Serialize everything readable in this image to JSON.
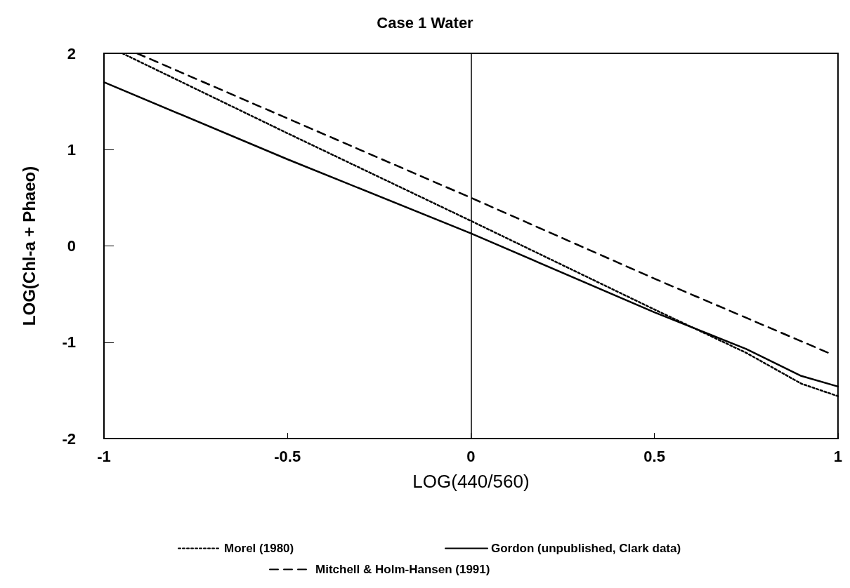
{
  "chart_data": {
    "type": "line",
    "title": "Case 1 Water",
    "xlabel": "LOG(440/560)",
    "ylabel": "LOG(Chl-a + Phaeo)",
    "xlim": [
      -1,
      1
    ],
    "xticks": [
      -1,
      -0.5,
      0,
      0.5,
      1
    ],
    "ylim": [
      -2,
      2
    ],
    "yticks": [
      -2,
      -1,
      0,
      1,
      2
    ],
    "grid": false,
    "legend": "bottom",
    "marker": "none",
    "ref_lines": [
      {
        "axis": "x",
        "value": 0,
        "color": "#000000",
        "line_style": "solid"
      }
    ],
    "series": [
      {
        "name": "Morel (1980)",
        "color": "#000000",
        "line_style": "dotted",
        "x": [
          -0.95,
          -0.5,
          0,
          0.5,
          0.75,
          0.9,
          1
        ],
        "values": [
          2,
          1.17,
          0.26,
          -0.66,
          -1.11,
          -1.43,
          -1.56
        ]
      },
      {
        "name": "Gordon (unpublished, Clark data)",
        "color": "#000000",
        "line_style": "solid",
        "x": [
          -1,
          -0.5,
          0,
          0.5,
          0.75,
          0.9,
          1
        ],
        "values": [
          1.7,
          0.9,
          0.13,
          -0.69,
          -1.07,
          -1.35,
          -1.46
        ]
      },
      {
        "name": "Mitchell & Holm-Hansen (1991)",
        "color": "#000000",
        "line_style": "dashed",
        "x": [
          -0.91,
          0,
          0.5,
          0.98
        ],
        "values": [
          2,
          0.5,
          -0.34,
          -1.12
        ]
      }
    ]
  }
}
